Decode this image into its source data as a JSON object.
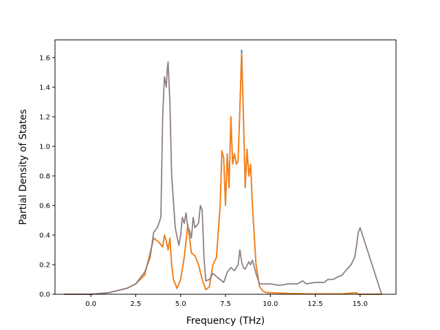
{
  "chart_data": {
    "type": "line",
    "xlabel": "Frequency (THz)",
    "ylabel": "Partial Density of States",
    "xlim": [
      -2.0,
      17.0
    ],
    "ylim": [
      0.0,
      1.72
    ],
    "xticks": [
      0.0,
      2.5,
      5.0,
      7.5,
      10.0,
      12.5,
      15.0
    ],
    "xtick_labels": [
      "0.0",
      "2.5",
      "5.0",
      "7.5",
      "10.0",
      "12.5",
      "15.0"
    ],
    "yticks": [
      0.0,
      0.2,
      0.4,
      0.6,
      0.8,
      1.0,
      1.2,
      1.4,
      1.6
    ],
    "ytick_labels": [
      "0.0",
      "0.2",
      "0.4",
      "0.6",
      "0.8",
      "1.0",
      "1.2",
      "1.4",
      "1.6"
    ],
    "grid": false,
    "series": [
      {
        "color": "#1f77b4",
        "x": [
          -1.5,
          0.0,
          1.0,
          2.0,
          2.5,
          3.0,
          3.5,
          3.8,
          4.0,
          4.1,
          4.2,
          4.3,
          4.4,
          4.5,
          4.6,
          4.8,
          5.0,
          5.2,
          5.4,
          5.6,
          5.8,
          6.0,
          6.2,
          6.4,
          6.6,
          6.8,
          7.0,
          7.2,
          7.3,
          7.4,
          7.5,
          7.6,
          7.7,
          7.8,
          7.9,
          8.0,
          8.1,
          8.2,
          8.3,
          8.4,
          8.5,
          8.6,
          8.7,
          8.8,
          8.9,
          9.0,
          9.1,
          9.2,
          9.4,
          9.6,
          9.8,
          10.0,
          11.0,
          12.0,
          13.0,
          14.0,
          14.8,
          14.9,
          16.2
        ],
        "values": [
          0.0,
          0.0,
          0.01,
          0.04,
          0.07,
          0.13,
          0.38,
          0.35,
          0.32,
          0.4,
          0.36,
          0.3,
          0.38,
          0.2,
          0.1,
          0.04,
          0.1,
          0.25,
          0.47,
          0.28,
          0.26,
          0.2,
          0.1,
          0.03,
          0.05,
          0.2,
          0.25,
          0.6,
          0.97,
          0.92,
          0.6,
          0.95,
          0.72,
          1.2,
          0.88,
          0.95,
          0.88,
          0.9,
          1.25,
          1.65,
          1.2,
          0.72,
          0.98,
          0.8,
          0.88,
          0.6,
          0.4,
          0.2,
          0.05,
          0.02,
          0.01,
          0.01,
          0.005,
          0.003,
          0.003,
          0.003,
          0.01,
          0.0,
          0.0
        ]
      },
      {
        "color": "#ff7f0e",
        "x": [
          -1.5,
          0.0,
          1.0,
          2.0,
          2.5,
          3.0,
          3.5,
          3.8,
          4.0,
          4.1,
          4.2,
          4.3,
          4.4,
          4.5,
          4.6,
          4.8,
          5.0,
          5.2,
          5.4,
          5.6,
          5.8,
          6.0,
          6.2,
          6.4,
          6.6,
          6.8,
          7.0,
          7.2,
          7.3,
          7.4,
          7.5,
          7.6,
          7.7,
          7.8,
          7.9,
          8.0,
          8.1,
          8.2,
          8.3,
          8.4,
          8.5,
          8.6,
          8.7,
          8.8,
          8.9,
          9.0,
          9.1,
          9.2,
          9.4,
          9.6,
          9.8,
          10.0,
          11.0,
          12.0,
          13.0,
          14.0,
          14.8,
          14.9,
          16.2
        ],
        "values": [
          0.0,
          0.0,
          0.01,
          0.04,
          0.07,
          0.13,
          0.38,
          0.35,
          0.32,
          0.4,
          0.36,
          0.3,
          0.38,
          0.2,
          0.1,
          0.04,
          0.1,
          0.25,
          0.47,
          0.28,
          0.26,
          0.2,
          0.1,
          0.03,
          0.05,
          0.2,
          0.25,
          0.6,
          0.97,
          0.92,
          0.6,
          0.95,
          0.72,
          1.2,
          0.88,
          0.95,
          0.88,
          0.9,
          1.25,
          1.63,
          1.2,
          0.72,
          0.98,
          0.8,
          0.88,
          0.6,
          0.4,
          0.2,
          0.05,
          0.02,
          0.01,
          0.01,
          0.005,
          0.003,
          0.003,
          0.003,
          0.01,
          0.0,
          0.0
        ]
      },
      {
        "color": "#8c7f85",
        "x": [
          -1.5,
          0.0,
          1.0,
          2.0,
          2.5,
          3.0,
          3.3,
          3.5,
          3.7,
          3.9,
          4.0,
          4.1,
          4.2,
          4.25,
          4.3,
          4.4,
          4.5,
          4.7,
          4.9,
          5.0,
          5.1,
          5.2,
          5.3,
          5.4,
          5.5,
          5.6,
          5.7,
          5.8,
          6.0,
          6.1,
          6.2,
          6.3,
          6.4,
          6.6,
          6.8,
          7.0,
          7.2,
          7.4,
          7.6,
          7.8,
          8.0,
          8.2,
          8.3,
          8.4,
          8.5,
          8.6,
          8.8,
          8.9,
          9.0,
          9.2,
          9.4,
          9.8,
          10.0,
          10.5,
          11.0,
          11.5,
          11.8,
          12.0,
          12.5,
          13.0,
          13.2,
          13.5,
          13.8,
          14.0,
          14.2,
          14.5,
          14.7,
          14.8,
          14.9,
          15.0,
          16.2
        ],
        "values": [
          0.0,
          0.0,
          0.01,
          0.04,
          0.07,
          0.15,
          0.25,
          0.42,
          0.45,
          0.52,
          1.2,
          1.47,
          1.4,
          1.52,
          1.57,
          1.3,
          0.8,
          0.45,
          0.33,
          0.4,
          0.52,
          0.48,
          0.55,
          0.45,
          0.43,
          0.38,
          0.52,
          0.45,
          0.48,
          0.6,
          0.57,
          0.25,
          0.09,
          0.1,
          0.14,
          0.12,
          0.1,
          0.08,
          0.15,
          0.18,
          0.16,
          0.2,
          0.3,
          0.22,
          0.18,
          0.17,
          0.22,
          0.2,
          0.23,
          0.14,
          0.07,
          0.07,
          0.07,
          0.06,
          0.07,
          0.07,
          0.09,
          0.07,
          0.08,
          0.08,
          0.1,
          0.1,
          0.12,
          0.13,
          0.16,
          0.2,
          0.25,
          0.33,
          0.42,
          0.45,
          0.0
        ]
      }
    ]
  }
}
